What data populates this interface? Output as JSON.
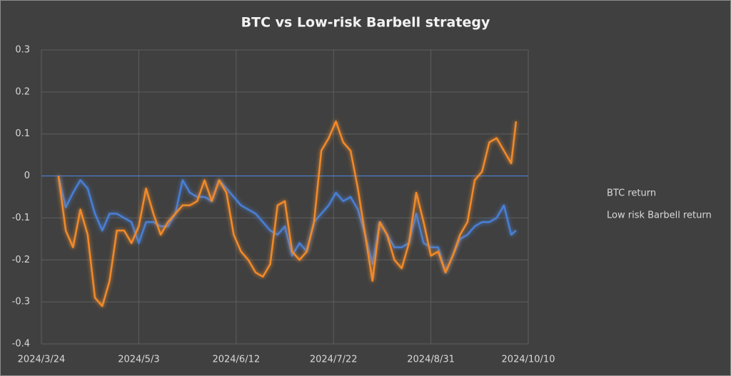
{
  "chart_data": {
    "type": "line",
    "title": "BTC vs Low-risk Barbell strategy",
    "x": [
      "2024/3/31",
      "2024/4/3",
      "2024/4/6",
      "2024/4/9",
      "2024/4/12",
      "2024/4/15",
      "2024/4/18",
      "2024/4/21",
      "2024/4/24",
      "2024/4/27",
      "2024/4/30",
      "2024/5/3",
      "2024/5/6",
      "2024/5/9",
      "2024/5/12",
      "2024/5/15",
      "2024/5/18",
      "2024/5/21",
      "2024/5/24",
      "2024/5/27",
      "2024/5/30",
      "2024/6/2",
      "2024/6/5",
      "2024/6/8",
      "2024/6/11",
      "2024/6/14",
      "2024/6/17",
      "2024/6/20",
      "2024/6/23",
      "2024/6/26",
      "2024/6/29",
      "2024/7/2",
      "2024/7/5",
      "2024/7/8",
      "2024/7/11",
      "2024/7/14",
      "2024/7/17",
      "2024/7/20",
      "2024/7/23",
      "2024/7/26",
      "2024/7/29",
      "2024/8/1",
      "2024/8/4",
      "2024/8/7",
      "2024/8/10",
      "2024/8/13",
      "2024/8/16",
      "2024/8/19",
      "2024/8/22",
      "2024/8/25",
      "2024/8/28",
      "2024/8/31",
      "2024/9/3",
      "2024/9/6",
      "2024/9/9",
      "2024/9/12",
      "2024/9/15",
      "2024/9/18",
      "2024/9/21",
      "2024/9/24",
      "2024/9/27",
      "2024/9/30",
      "2024/10/3",
      "2024/10/5"
    ],
    "series": [
      {
        "name": "BTC return",
        "color": "#4a7fd4",
        "values": [
          0,
          -0.075,
          -0.04,
          -0.01,
          -0.03,
          -0.09,
          -0.13,
          -0.09,
          -0.09,
          -0.1,
          -0.11,
          -0.16,
          -0.11,
          -0.11,
          -0.12,
          -0.12,
          -0.09,
          -0.01,
          -0.04,
          -0.05,
          -0.05,
          -0.06,
          -0.01,
          -0.03,
          -0.05,
          -0.07,
          -0.08,
          -0.09,
          -0.11,
          -0.13,
          -0.14,
          -0.12,
          -0.19,
          -0.16,
          -0.18,
          -0.11,
          -0.09,
          -0.07,
          -0.04,
          -0.06,
          -0.05,
          -0.08,
          -0.14,
          -0.21,
          -0.11,
          -0.14,
          -0.17,
          -0.17,
          -0.16,
          -0.09,
          -0.16,
          -0.17,
          -0.17,
          -0.23,
          -0.19,
          -0.15,
          -0.14,
          -0.12,
          -0.11,
          -0.11,
          -0.1,
          -0.07,
          -0.14,
          -0.13
        ]
      },
      {
        "name": "Low risk Barbell return",
        "color": "#f08a2c",
        "values": [
          0,
          -0.13,
          -0.17,
          -0.08,
          -0.14,
          -0.29,
          -0.31,
          -0.25,
          -0.13,
          -0.13,
          -0.16,
          -0.12,
          -0.03,
          -0.09,
          -0.14,
          -0.11,
          -0.09,
          -0.07,
          -0.07,
          -0.06,
          -0.01,
          -0.06,
          -0.01,
          -0.04,
          -0.14,
          -0.18,
          -0.2,
          -0.23,
          -0.24,
          -0.21,
          -0.07,
          -0.06,
          -0.18,
          -0.2,
          -0.18,
          -0.11,
          0.06,
          0.09,
          0.13,
          0.08,
          0.06,
          -0.03,
          -0.14,
          -0.25,
          -0.11,
          -0.14,
          -0.2,
          -0.22,
          -0.16,
          -0.04,
          -0.11,
          -0.19,
          -0.18,
          -0.23,
          -0.19,
          -0.14,
          -0.11,
          -0.01,
          0.01,
          0.08,
          0.09,
          0.06,
          0.03,
          0.13
        ]
      }
    ],
    "xlim": [
      "2024/3/24",
      "2024/10/10"
    ],
    "xticks": [
      "2024/3/24",
      "2024/5/3",
      "2024/6/12",
      "2024/7/22",
      "2024/8/31",
      "2024/10/10"
    ],
    "ylim": [
      -0.4,
      0.3
    ],
    "yticks": [
      0.3,
      0.2,
      0.1,
      0,
      -0.1,
      -0.2,
      -0.3,
      -0.4
    ],
    "grid": true,
    "legend": "right"
  }
}
